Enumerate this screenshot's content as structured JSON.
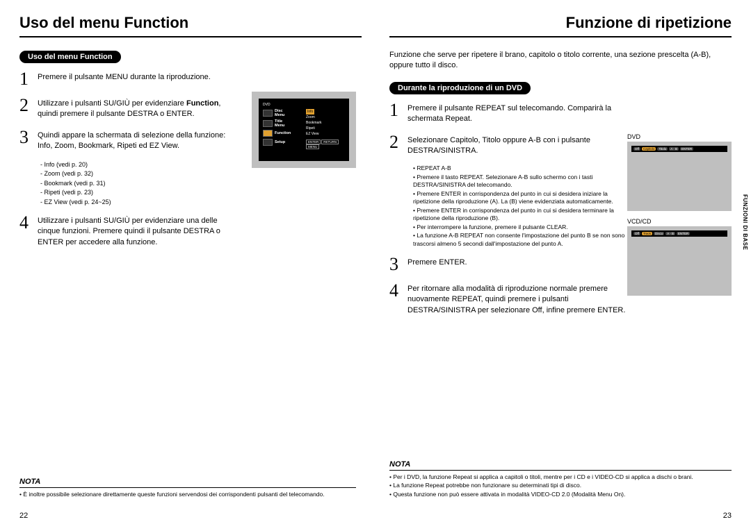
{
  "left": {
    "title": "Uso del menu Function",
    "badge": "Uso del menu Function",
    "steps": [
      {
        "n": "1",
        "t": "Premere il pulsante MENU durante la riproduzione."
      },
      {
        "n": "2",
        "t": "Utilizzare i pulsanti SU/GIÙ per evidenziare <b>Function</b>, quindi premere il pulsante DESTRA o ENTER."
      },
      {
        "n": "3",
        "t": "Quindi appare la schermata di selezione della funzione: Info, Zoom, Bookmark, Ripeti ed EZ View."
      },
      {
        "n": "4",
        "t": "Utilizzare i pulsanti SU/GIÙ per evidenziare una delle cinque funzioni. Premere quindi il pulsante DESTRA o ENTER per accedere alla funzione."
      }
    ],
    "sublist": [
      "Info (vedi p. 20)",
      "Zoom (vedi p. 32)",
      "Bookmark (vedi p. 31)",
      "Ripeti (vedi p. 23)",
      "EZ View (vedi p. 24~25)"
    ],
    "nota_head": "NOTA",
    "nota": [
      "È inoltre possibile selezionare direttamente queste funzioni servendosi dei corrispondenti pulsanti del telecomando."
    ],
    "pagenum": "22",
    "screen": {
      "header": "DVD",
      "menuItems": [
        {
          "label": "Disc Menu"
        },
        {
          "label": "Title Menu"
        },
        {
          "label": "Function",
          "hl": true
        },
        {
          "label": "Setup"
        }
      ],
      "subItems": [
        "Info",
        "Zoom",
        "Bookmark",
        "Ripeti",
        "EZ View"
      ],
      "subHighlight": 0,
      "buttons": [
        "ENTER",
        "RETURN",
        "MENU"
      ]
    }
  },
  "right": {
    "title": "Funzione di ripetizione",
    "intro": "Funzione che serve per ripetere il brano, capitolo o titolo corrente, una sezione prescelta (A-B), oppure tutto il disco.",
    "badge": "Durante la riproduzione di un DVD",
    "steps": [
      {
        "n": "1",
        "t": "Premere il pulsante REPEAT sul telecomando. Comparirà la schermata Repeat."
      },
      {
        "n": "2",
        "t": "Selezionare Capitolo, Titolo oppure A-B con i pulsante DESTRA/SINISTRA."
      },
      {
        "n": "3",
        "t": "Premere ENTER."
      },
      {
        "n": "4",
        "t": "Per ritornare alla modalità di riproduzione normale premere nuovamente REPEAT, quindi premere i pulsanti DESTRA/SINISTRA per selezionare Off, infine premere ENTER."
      }
    ],
    "bullets": [
      "REPEAT A-B",
      "Premere il tasto REPEAT. Selezionare A-B sullo schermo con i tasti DESTRA/SINISTRA del telecomando.",
      "Premere ENTER in corrispondenza del punto in cui si desidera iniziare la ripetizione della riproduzione (A). La (B) viene evidenziata automaticamente.",
      "Premere ENTER in corrispondenza del punto in cui si desidera terminare la ripetizione della riproduzione (B).",
      "Per interrompere la funzione, premere il pulsante CLEAR.",
      "La funzione A-B REPEAT non consente l'impostazione del punto B se non sono trascorsi almeno 5 secondi dall'impostazione del punto A."
    ],
    "fig1_label": "DVD",
    "fig1_bar": [
      "Off",
      "Capitolo",
      "Titolo",
      "A - B",
      "ENTER"
    ],
    "fig2_label": "VCD/CD",
    "fig2_bar": [
      "Off",
      "Track",
      "Disco",
      "A - B",
      "ENTER"
    ],
    "nota_head": "NOTA",
    "nota": [
      "Per i DVD, la funzione Repeat si applica a capitoli o titoli, mentre per i CD e i VIDEO-CD si applica a dischi o brani.",
      "La funzione Repeat potrebbe non funzionare su determinati tipi di disco.",
      "Questa funzione non può essere attivata in modalità VIDEO-CD 2.0 (Modalità Menu On)."
    ],
    "side_tab": "FUNZIONI DI\nBASE",
    "pagenum": "23"
  }
}
